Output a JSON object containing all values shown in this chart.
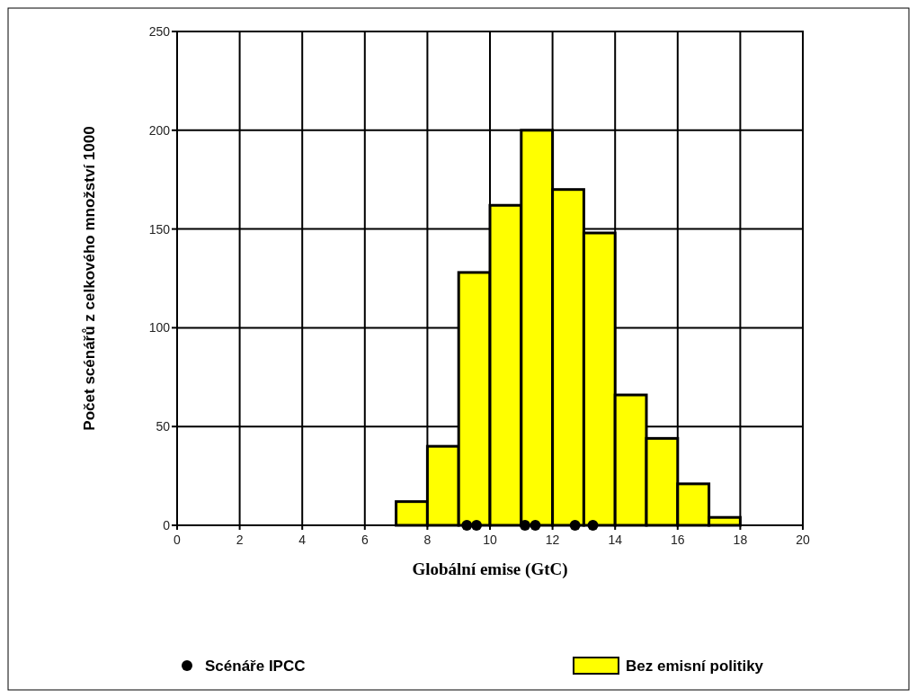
{
  "chart_data": {
    "type": "histogram",
    "xlabel": "Globální emise (GtC)",
    "ylabel": "Počet scénářů z celkového množství 1000",
    "bins": [
      7,
      8,
      9,
      10,
      11,
      12,
      13,
      14,
      15,
      16,
      17,
      18
    ],
    "series": [
      {
        "name": "Scénáře IPCC",
        "type": "scatter",
        "color": "#000000",
        "x": [
          9.26,
          9.57,
          11.12,
          11.45,
          12.72,
          13.29
        ],
        "values": [
          0,
          0,
          0,
          0,
          0,
          0
        ]
      },
      {
        "name": "Bez emisní politiky",
        "color": "#ffff00",
        "values": [
          12,
          40,
          128,
          162,
          200,
          170,
          148,
          66,
          44,
          21,
          4
        ]
      }
    ],
    "xlim": [
      0,
      20
    ],
    "xticks": [
      0,
      2,
      4,
      6,
      8,
      10,
      12,
      14,
      16,
      18,
      20
    ],
    "ylim": [
      0,
      250
    ],
    "yticks": [
      0,
      50,
      100,
      150,
      200,
      250
    ],
    "grid": true,
    "legend": "bottom",
    "marker": "circle"
  }
}
